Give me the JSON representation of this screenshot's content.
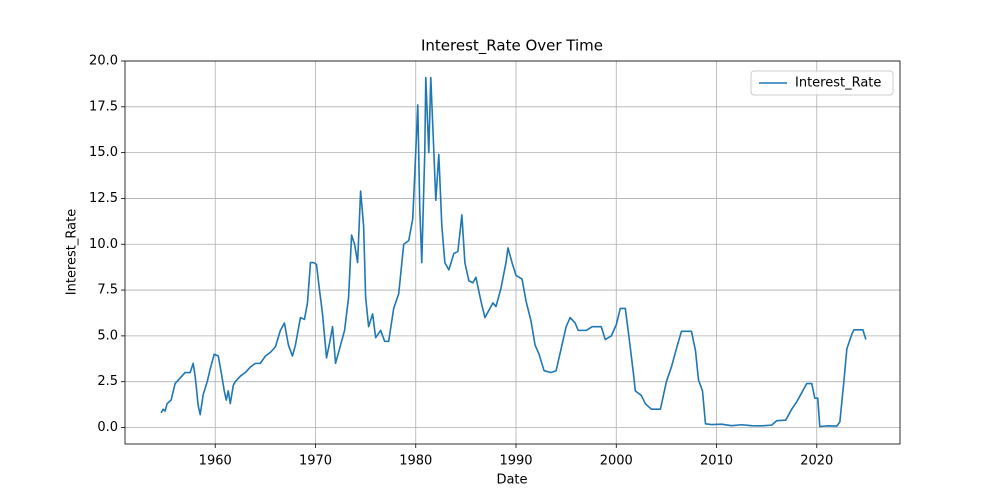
{
  "chart_data": {
    "type": "line",
    "title": "Interest_Rate Over Time",
    "xlabel": "Date",
    "ylabel": "Interest_Rate",
    "legend": "upper right",
    "grid": true,
    "xlim": [
      1951.0,
      2028.3
    ],
    "ylim": [
      -0.9,
      20.0
    ],
    "xticks": [
      1960,
      1970,
      1980,
      1990,
      2000,
      2010,
      2020
    ],
    "yticks": [
      {
        "value": 0,
        "label": "0.0"
      },
      2.5,
      {
        "value": 5,
        "label": "5.0"
      },
      7.5,
      {
        "value": 10,
        "label": "10.0"
      },
      12.5,
      {
        "value": 15,
        "label": "15.0"
      },
      17.5,
      {
        "value": 20,
        "label": "20.0"
      }
    ],
    "series": [
      {
        "name": "Interest_Rate",
        "color": "#1f77b4",
        "x": [
          1954.6,
          1954.8,
          1955.0,
          1955.2,
          1955.6,
          1956.0,
          1956.5,
          1957.0,
          1957.5,
          1957.8,
          1958.0,
          1958.3,
          1958.5,
          1958.8,
          1959.2,
          1959.5,
          1959.9,
          1960.3,
          1960.6,
          1960.9,
          1961.1,
          1961.3,
          1961.5,
          1961.8,
          1962.0,
          1962.5,
          1963.0,
          1963.5,
          1964.0,
          1964.5,
          1965.0,
          1965.5,
          1966.0,
          1966.5,
          1966.9,
          1967.3,
          1967.7,
          1968.0,
          1968.5,
          1968.9,
          1969.2,
          1969.5,
          1969.8,
          1970.1,
          1970.4,
          1970.7,
          1971.1,
          1971.4,
          1971.7,
          1972.0,
          1972.5,
          1972.9,
          1973.3,
          1973.6,
          1973.9,
          1974.2,
          1974.5,
          1974.8,
          1975.0,
          1975.3,
          1975.7,
          1976.0,
          1976.5,
          1976.9,
          1977.3,
          1977.8,
          1978.3,
          1978.8,
          1979.3,
          1979.7,
          1979.9,
          1980.2,
          1980.4,
          1980.6,
          1980.9,
          1981.0,
          1981.3,
          1981.5,
          1981.8,
          1982.0,
          1982.3,
          1982.6,
          1982.9,
          1983.3,
          1983.8,
          1984.2,
          1984.6,
          1984.9,
          1985.3,
          1985.7,
          1986.0,
          1986.5,
          1986.9,
          1987.3,
          1987.7,
          1988.0,
          1988.5,
          1989.0,
          1989.2,
          1989.6,
          1990.0,
          1990.6,
          1991.0,
          1991.5,
          1991.9,
          1992.3,
          1992.8,
          1993.5,
          1994.0,
          1994.5,
          1995.0,
          1995.4,
          1995.9,
          1996.2,
          1997.0,
          1997.6,
          1998.5,
          1998.9,
          1999.5,
          2000.0,
          2000.4,
          2000.9,
          2001.3,
          2001.7,
          2001.9,
          2002.5,
          2002.9,
          2003.5,
          2004.4,
          2005.0,
          2005.5,
          2006.0,
          2006.5,
          2007.5,
          2007.9,
          2008.2,
          2008.6,
          2008.9,
          2009.5,
          2010.5,
          2011.5,
          2012.5,
          2013.5,
          2014.5,
          2015.5,
          2016.0,
          2016.9,
          2017.5,
          2018.0,
          2018.5,
          2019.0,
          2019.5,
          2019.8,
          2020.1,
          2020.3,
          2021.0,
          2022.0,
          2022.3,
          2022.7,
          2023.0,
          2023.5,
          2023.7,
          2024.6,
          2024.9
        ],
        "values": [
          0.8,
          1.0,
          0.9,
          1.3,
          1.5,
          2.4,
          2.7,
          3.0,
          3.0,
          3.5,
          2.8,
          1.2,
          0.7,
          1.8,
          2.5,
          3.2,
          4.0,
          3.9,
          3.0,
          2.0,
          1.5,
          2.0,
          1.3,
          2.3,
          2.5,
          2.8,
          3.0,
          3.3,
          3.5,
          3.5,
          3.9,
          4.1,
          4.4,
          5.3,
          5.7,
          4.5,
          3.9,
          4.5,
          6.0,
          5.9,
          6.8,
          9.0,
          9.0,
          8.9,
          7.5,
          6.2,
          3.8,
          4.6,
          5.5,
          3.5,
          4.5,
          5.3,
          7.1,
          10.5,
          10.0,
          9.0,
          12.9,
          11.0,
          7.1,
          5.5,
          6.2,
          4.9,
          5.3,
          4.7,
          4.7,
          6.5,
          7.3,
          10.0,
          10.2,
          11.4,
          13.8,
          17.6,
          12.0,
          9.0,
          15.0,
          19.1,
          15.0,
          19.1,
          15.1,
          12.4,
          14.9,
          11.0,
          9.0,
          8.6,
          9.5,
          9.6,
          11.6,
          9.0,
          8.0,
          7.9,
          8.2,
          6.9,
          6.0,
          6.4,
          6.8,
          6.6,
          7.6,
          9.0,
          9.8,
          9.0,
          8.3,
          8.1,
          6.9,
          5.8,
          4.5,
          4.0,
          3.1,
          3.0,
          3.1,
          4.3,
          5.5,
          6.0,
          5.7,
          5.3,
          5.3,
          5.5,
          5.5,
          4.8,
          5.0,
          5.6,
          6.5,
          6.5,
          4.8,
          3.0,
          2.0,
          1.75,
          1.3,
          1.0,
          1.0,
          2.5,
          3.3,
          4.3,
          5.25,
          5.25,
          4.2,
          2.6,
          2.0,
          0.2,
          0.16,
          0.18,
          0.1,
          0.15,
          0.1,
          0.09,
          0.13,
          0.37,
          0.4,
          1.0,
          1.4,
          1.9,
          2.4,
          2.4,
          1.6,
          1.6,
          0.05,
          0.09,
          0.08,
          0.3,
          2.5,
          4.3,
          5.1,
          5.33,
          5.33,
          4.8
        ]
      }
    ]
  }
}
